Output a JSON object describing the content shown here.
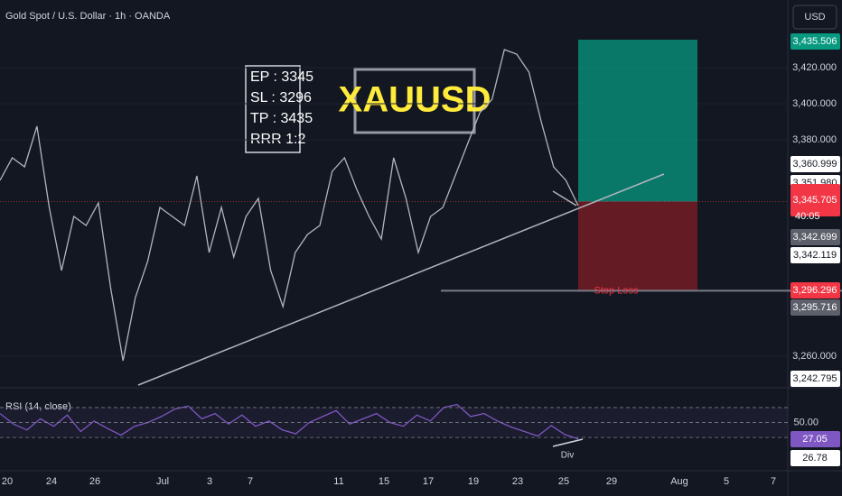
{
  "chart_data": [
    {
      "type": "line",
      "title": "Gold Spot / U.S. Dollar · 1h · OANDA",
      "color": "#b2b5be",
      "values": [
        3357.5,
        3370,
        3365,
        3387.5,
        3342.5,
        3307.5,
        3337.5,
        3332.5,
        3345,
        3297.5,
        3257.5,
        3292.5,
        3312.5,
        3342.5,
        3337.5,
        3332.5,
        3360,
        3317.5,
        3342.5,
        3315,
        3337.5,
        3347.5,
        3307.5,
        3287.5,
        3317.5,
        3327.5,
        3332.5,
        3362.5,
        3370,
        3352.5,
        3337.5,
        3325,
        3370,
        3347.5,
        3317.5,
        3337.5,
        3342.5,
        3360,
        3377.5,
        3395,
        3402.5,
        3430,
        3427.5,
        3417.5,
        3390,
        3365,
        3357.5,
        3343.5
      ],
      "ylim": [
        3457.5,
        3242.5
      ],
      "yticks": [
        {
          "value": 3420,
          "label": "3,420.000"
        },
        {
          "value": 3400,
          "label": "3,400.000"
        },
        {
          "value": 3380,
          "label": "3,380.000"
        },
        {
          "value": 3260,
          "label": "3,260.000"
        }
      ],
      "grid": true
    },
    {
      "type": "line",
      "title": "RSI (14, close)",
      "color": "#7e57c2",
      "values": [
        62,
        48,
        40,
        55,
        45,
        60,
        38,
        52,
        42,
        33,
        45,
        50,
        58,
        68,
        72,
        55,
        62,
        48,
        60,
        45,
        52,
        40,
        35,
        50,
        58,
        66,
        48,
        55,
        62,
        50,
        45,
        60,
        52,
        70,
        74,
        58,
        62,
        52,
        44,
        38,
        32,
        46,
        34,
        28
      ],
      "ylim": [
        88,
        -12
      ],
      "yticks": [
        {
          "value": 50,
          "label": "50.00"
        }
      ],
      "levels": [
        70,
        50,
        30
      ]
    }
  ],
  "currency": "USD",
  "x_labels": [
    "20",
    "24",
    "26",
    "Jul",
    "3",
    "7",
    "11",
    "15",
    "17",
    "19",
    "23",
    "25",
    "29",
    "Aug",
    "5",
    "7"
  ],
  "trade_box": [
    "EP : 3345",
    "SL : 3296",
    "TP : 3435",
    "RRR 1:2"
  ],
  "symbol": "XAUUSD",
  "stop_loss_text": "Stop Loss",
  "div_text": "Div",
  "countdown": "40:05",
  "price_labels": [
    {
      "value": 3435.506,
      "label": "3,435.506",
      "color": "#089981"
    },
    {
      "value": 3360.999,
      "label": "3,360.999",
      "color": "#ffffff"
    },
    {
      "value": 3351.98,
      "label": "3,351.980",
      "color": "#ffffff"
    },
    {
      "value": 3345.705,
      "label": "3,345.705",
      "color": "#f23645"
    },
    {
      "value": 3342.699,
      "label": "3,342.699",
      "color": "#5d606b"
    },
    {
      "value": 3342.119,
      "label": "3,342.119",
      "color": "#ffffff"
    },
    {
      "value": 3296.296,
      "label": "3,296.296",
      "color": "#f23645"
    },
    {
      "value": 3295.716,
      "label": "3,295.716",
      "color": "#5d606b"
    },
    {
      "value": 3242.795,
      "label": "3,242.795",
      "color": "#ffffff"
    }
  ],
  "rsi_labels": [
    {
      "value": 27.05,
      "label": "27.05",
      "color": "#7e57c2"
    },
    {
      "value": 26.78,
      "label": "26.78",
      "color": "#ffffff"
    }
  ]
}
